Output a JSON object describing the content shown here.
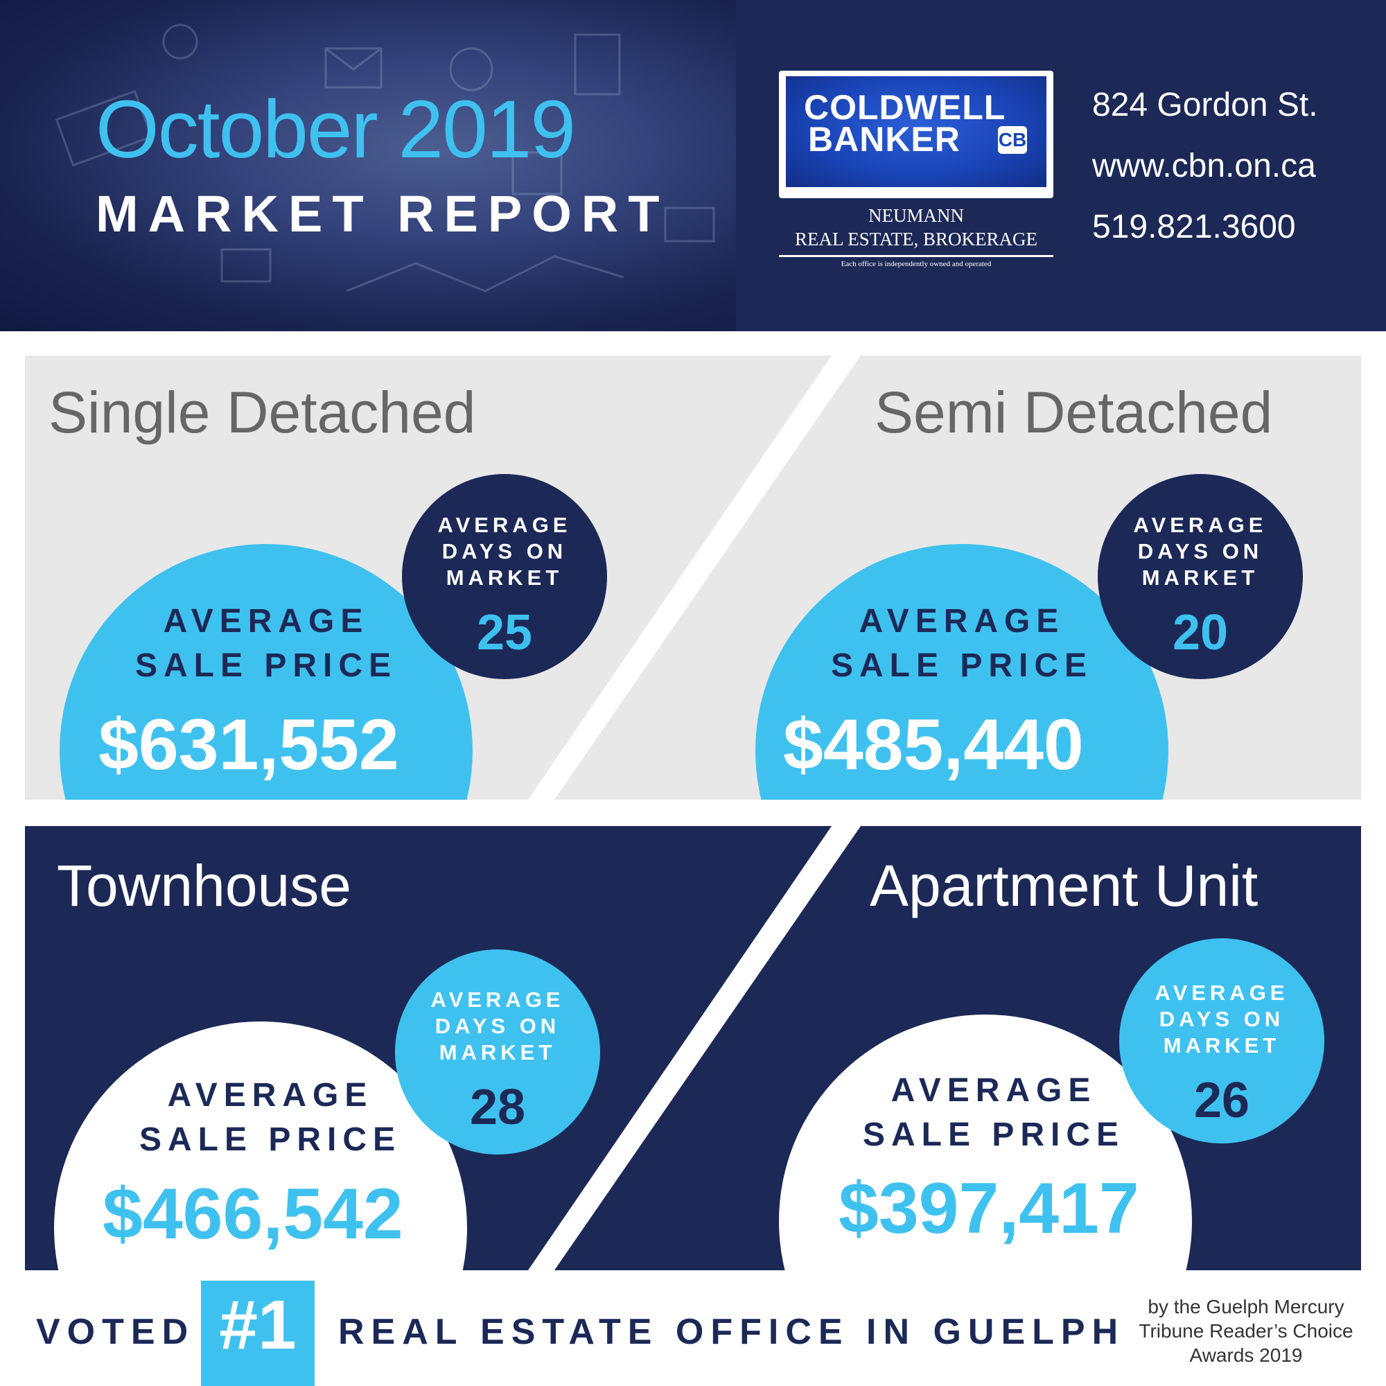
{
  "header": {
    "title_month": "October 2019",
    "title_report": "MARKET REPORT",
    "logo": {
      "line1": "COLDWELL",
      "line2": "BANKER",
      "mark": "CB",
      "sub1": "NEUMANN",
      "sub2": "REAL ESTATE, BROKERAGE",
      "sub3": "Each office is independently owned and operated"
    },
    "contact": {
      "address": "824 Gordon St.",
      "website": "www.cbn.on.ca",
      "phone": "519.821.3600"
    }
  },
  "panels": {
    "single": {
      "label": "Single Detached",
      "avg_line1": "AVERAGE",
      "avg_line2": "SALE PRICE",
      "price": "$631,552",
      "days_line1": "AVERAGE",
      "days_line2": "DAYS ON",
      "days_line3": "MARKET",
      "days": "25"
    },
    "semi": {
      "label": "Semi Detached",
      "avg_line1": "AVERAGE",
      "avg_line2": "SALE PRICE",
      "price": "$485,440",
      "days_line1": "AVERAGE",
      "days_line2": "DAYS ON",
      "days_line3": "MARKET",
      "days": "20"
    },
    "townhouse": {
      "label": "Townhouse",
      "avg_line1": "AVERAGE",
      "avg_line2": "SALE PRICE",
      "price": "$466,542",
      "days_line1": "AVERAGE",
      "days_line2": "DAYS ON",
      "days_line3": "MARKET",
      "days": "28"
    },
    "apartment": {
      "label": "Apartment Unit",
      "avg_line1": "AVERAGE",
      "avg_line2": "SALE PRICE",
      "price": "$397,417",
      "days_line1": "AVERAGE",
      "days_line2": "DAYS ON",
      "days_line3": "MARKET",
      "days": "26"
    }
  },
  "footer": {
    "voted": "VOTED",
    "badge": "#1",
    "tagline": "REAL ESTATE OFFICE IN GUELPH",
    "credit_line1": "by the Guelph Mercury",
    "credit_line2": "Tribune Reader’s Choice",
    "credit_line3": "Awards 2019"
  },
  "colors": {
    "navy": "#1c2957",
    "accent_blue": "#3fc1ef",
    "light_gray_panel": "#e8e8e8",
    "label_gray": "#666666"
  }
}
